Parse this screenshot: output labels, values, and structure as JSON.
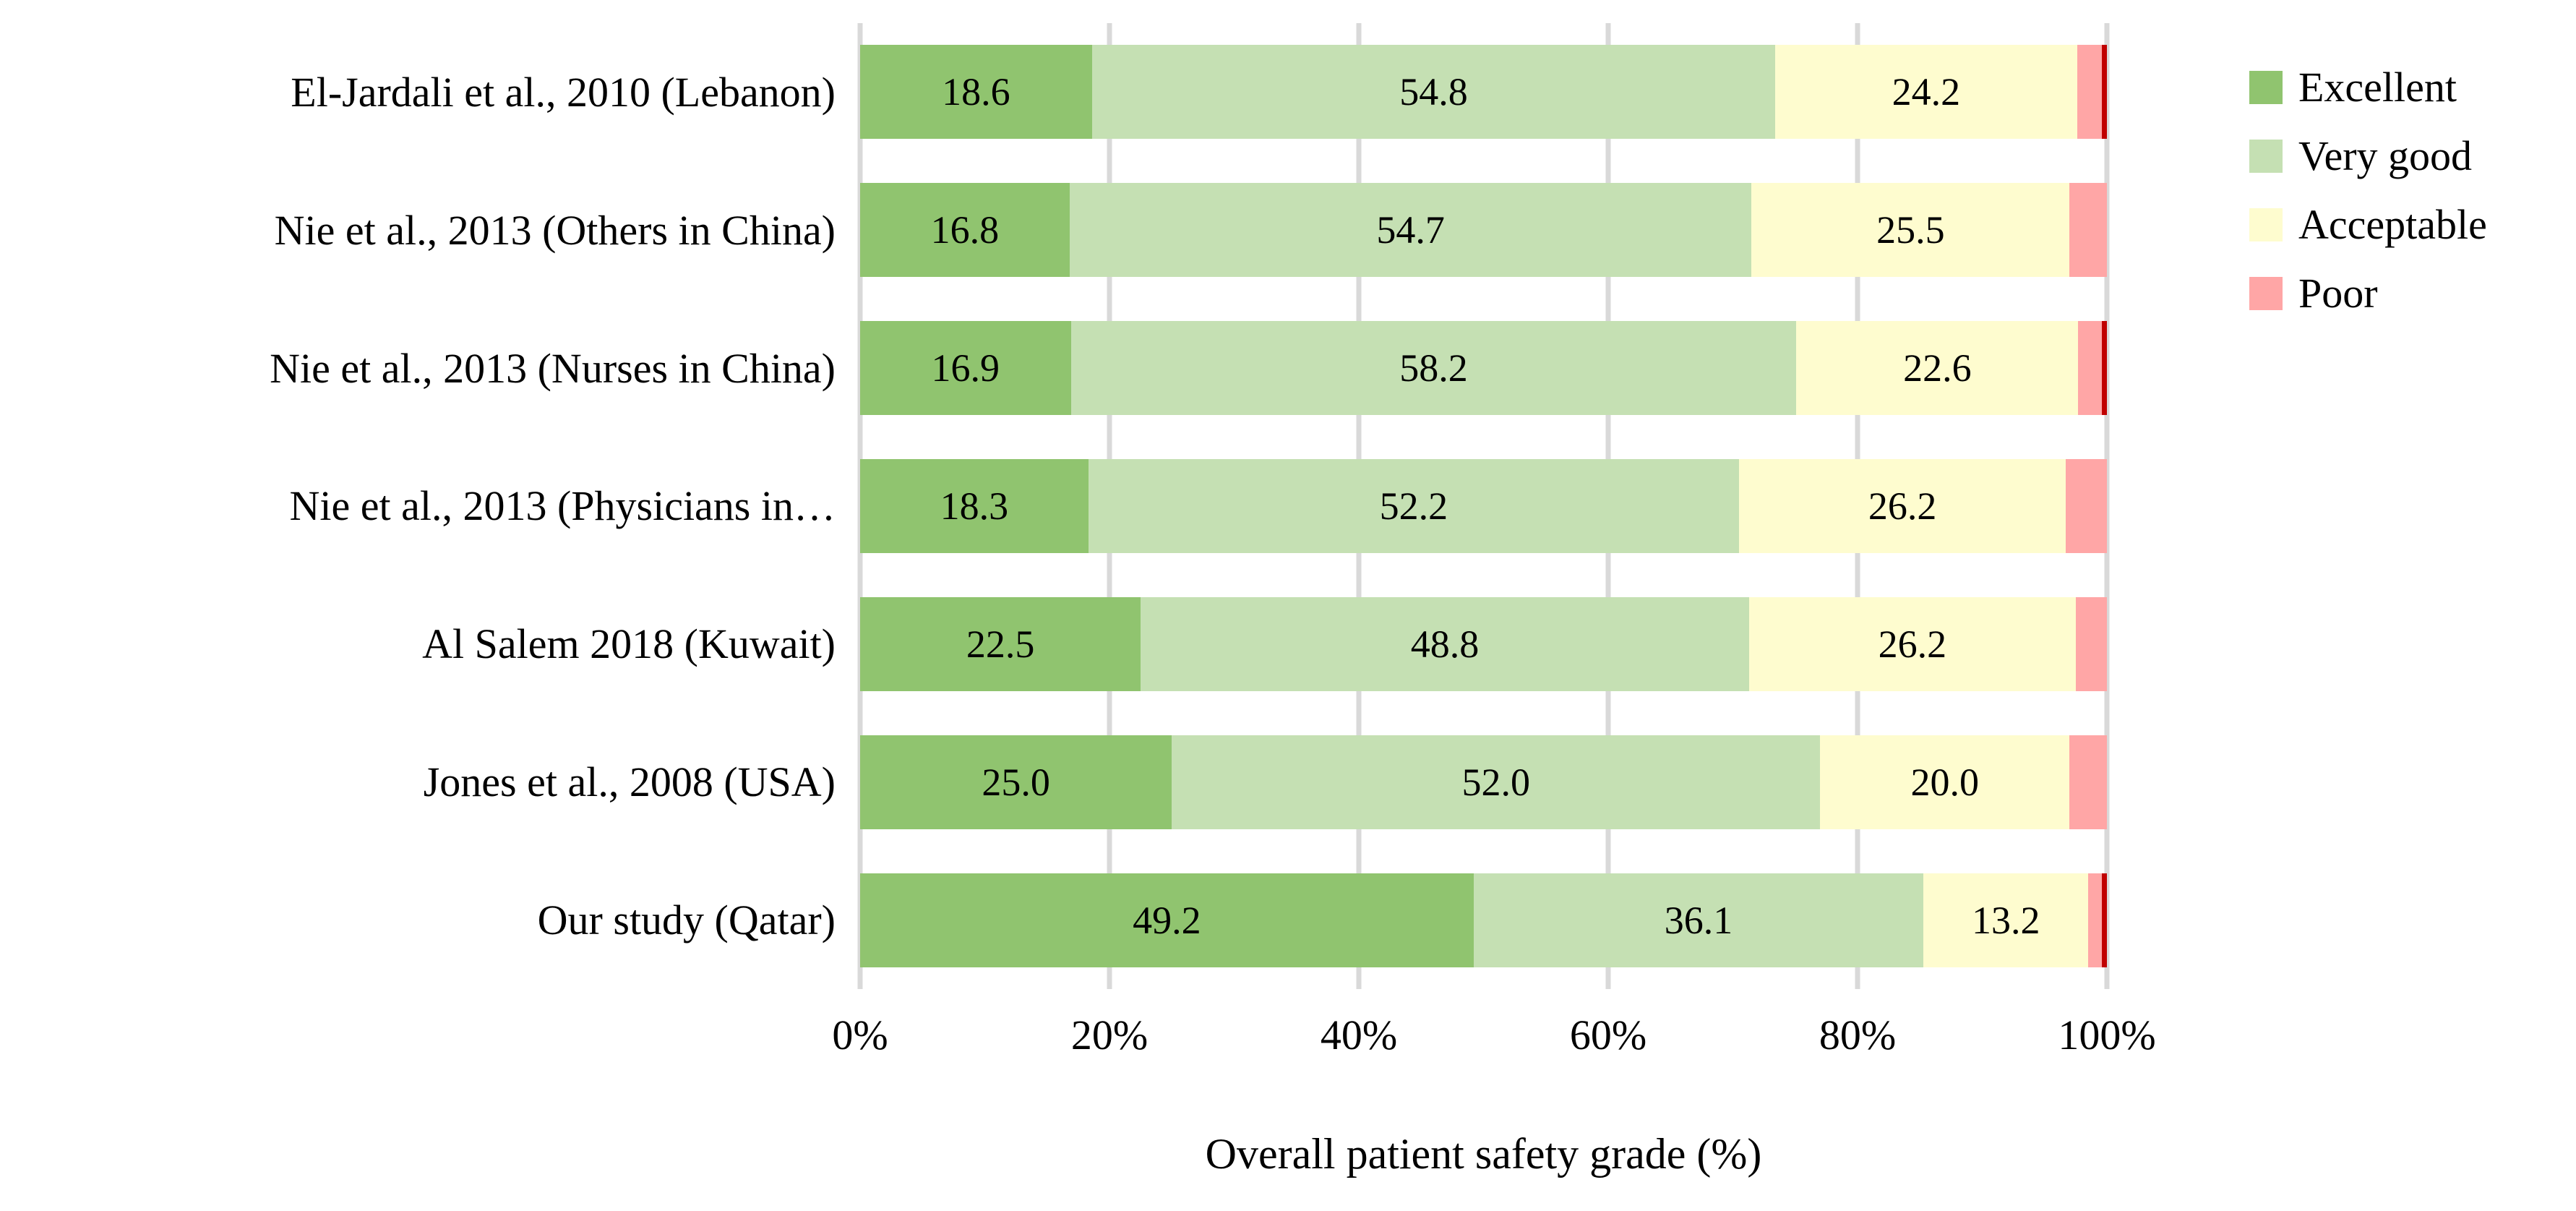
{
  "chart_data": {
    "type": "bar",
    "variant": "horizontal-stacked-100",
    "title": "",
    "xlabel": "Overall patient safety grade (%)",
    "ylabel": "",
    "x_ticks": [
      "0%",
      "20%",
      "40%",
      "60%",
      "80%",
      "100%"
    ],
    "xlim": [
      0,
      100
    ],
    "grid": true,
    "legend_position": "top-right",
    "categories": [
      "El-Jardali et al., 2010 (Lebanon)",
      "Nie et al., 2013 (Others in China)",
      "Nie et al., 2013 (Nurses in China)",
      "Nie et al., 2013 (Physicians in…",
      "Al Salem 2018 (Kuwait)",
      "Jones et al., 2008 (USA)",
      "Our study (Qatar)"
    ],
    "series": [
      {
        "name": "Excellent",
        "color": "#90C46F",
        "in_legend": true,
        "show_labels": true,
        "values": [
          18.6,
          16.8,
          16.9,
          18.3,
          22.5,
          25.0,
          49.2
        ]
      },
      {
        "name": "Very good",
        "color": "#C5E0B3",
        "in_legend": true,
        "show_labels": true,
        "values": [
          54.8,
          54.7,
          58.2,
          52.2,
          48.8,
          52.0,
          36.1
        ]
      },
      {
        "name": "Acceptable",
        "color": "#FEFCCF",
        "in_legend": true,
        "show_labels": true,
        "values": [
          24.2,
          25.5,
          22.6,
          26.2,
          26.2,
          20.0,
          13.2
        ]
      },
      {
        "name": "Poor",
        "color": "#FFA6A6",
        "in_legend": true,
        "show_labels": false,
        "values": [
          2.0,
          3.0,
          1.9,
          3.3,
          2.5,
          3.0,
          1.1
        ]
      },
      {
        "name": "unlabeled-dark-red-sliver",
        "color": "#C00000",
        "in_legend": false,
        "show_labels": false,
        "values": [
          0.4,
          0,
          0.4,
          0,
          0,
          0,
          0.4
        ]
      }
    ],
    "colors": {
      "grid": "#D9D9D9",
      "text": "#000000",
      "background": "#FFFFFF"
    }
  }
}
